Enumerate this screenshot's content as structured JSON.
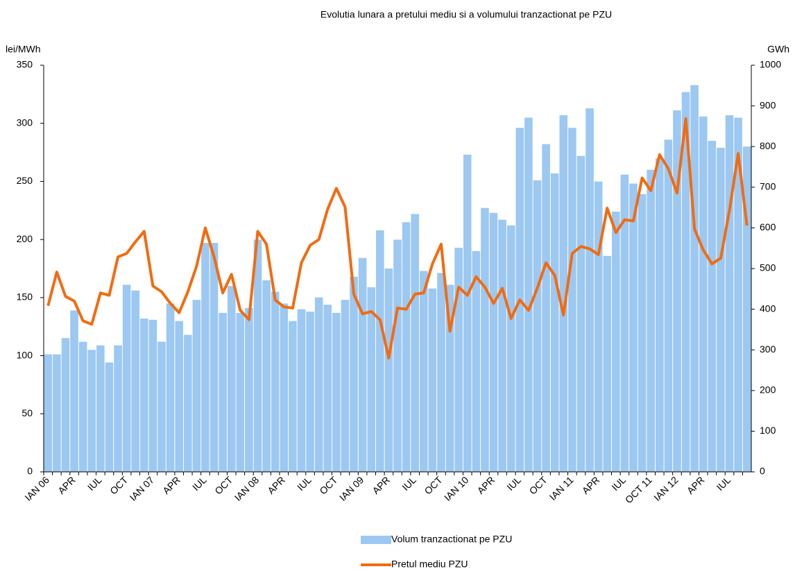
{
  "chart_data": {
    "type": "combo",
    "title": "Evolutia lunara a pretului mediu si a volumului tranzactionat pe PZU",
    "y_label": "lei/MWh",
    "y2_label": "GWh",
    "categories": [
      "IAN 06",
      null,
      null,
      "APR",
      null,
      null,
      "IUL",
      null,
      null,
      "OCT",
      null,
      null,
      "IAN 07",
      null,
      null,
      "APR",
      null,
      null,
      "IUL",
      null,
      null,
      "OCT",
      null,
      null,
      "IAN 08",
      null,
      null,
      "APR",
      null,
      null,
      "IUL",
      null,
      null,
      "OCT",
      null,
      null,
      "IAN 09",
      null,
      null,
      "APR",
      null,
      null,
      "IUL",
      null,
      null,
      "OCT",
      null,
      null,
      "IAN 10",
      null,
      null,
      "APR",
      null,
      null,
      "IUL",
      null,
      null,
      "OCT",
      null,
      null,
      "IAN 11",
      null,
      null,
      "APR",
      null,
      null,
      "IUL",
      null,
      null,
      "OCT 11",
      null,
      null,
      "IAN 12",
      null,
      null,
      "APR",
      null,
      null,
      "IUL",
      null,
      null
    ],
    "series": [
      {
        "name": "Volum tranzactionat pe PZU",
        "type": "bar",
        "axis": "y2",
        "color": "#9cc8f2",
        "values": [
          289,
          289,
          329,
          397,
          320,
          300,
          311,
          269,
          311,
          460,
          446,
          377,
          374,
          320,
          414,
          371,
          337,
          423,
          563,
          563,
          391,
          457,
          391,
          403,
          571,
          471,
          443,
          414,
          371,
          400,
          394,
          429,
          411,
          391,
          423,
          480,
          526,
          454,
          594,
          500,
          571,
          614,
          634,
          494,
          451,
          489,
          460,
          551,
          780,
          543,
          649,
          637,
          620,
          606,
          846,
          871,
          717,
          806,
          734,
          877,
          846,
          777,
          894,
          714,
          531,
          640,
          731,
          709,
          683,
          743,
          771,
          817,
          889,
          934,
          951,
          874,
          814,
          797,
          877,
          871,
          800
        ]
      },
      {
        "name": "Pretul mediu PZU",
        "type": "line",
        "axis": "y",
        "color": "#f26b10",
        "values": [
          143,
          172,
          151,
          147,
          130,
          127,
          154,
          152,
          185,
          188,
          198,
          207,
          160,
          155,
          145,
          137,
          155,
          177,
          210,
          185,
          154,
          170,
          139,
          131,
          207,
          196,
          148,
          142,
          141,
          180,
          195,
          200,
          226,
          244,
          228,
          153,
          136,
          138,
          131,
          98,
          141,
          140,
          153,
          154,
          179,
          196,
          121,
          159,
          152,
          168,
          159,
          145,
          158,
          132,
          148,
          139,
          158,
          180,
          169,
          135,
          188,
          194,
          192,
          187,
          227,
          206,
          217,
          216,
          253,
          242,
          273,
          261,
          240,
          304,
          209,
          191,
          179,
          184,
          225,
          274,
          212
        ]
      }
    ],
    "ylim": [
      0,
      350
    ],
    "yticks": [
      0,
      50,
      100,
      150,
      200,
      250,
      300,
      350
    ],
    "y2lim": [
      0,
      1000
    ],
    "y2ticks": [
      0,
      100,
      200,
      300,
      400,
      500,
      600,
      700,
      800,
      900,
      1000
    ],
    "legend": "bottom"
  }
}
